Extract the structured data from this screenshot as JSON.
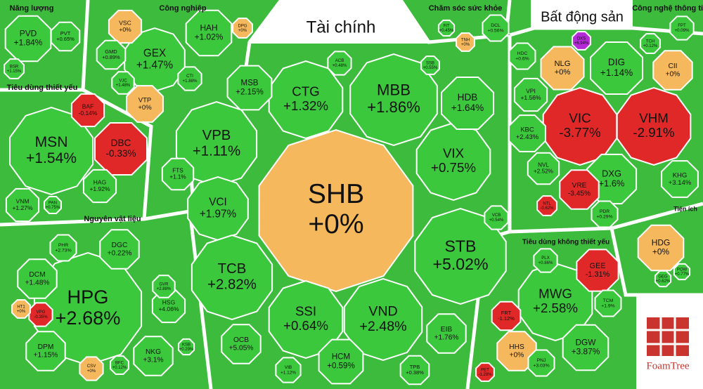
{
  "groups": [
    {
      "name": "Tài chính",
      "stocks": [
        {
          "ticker": "SHB",
          "change": "+0%"
        },
        {
          "ticker": "MBB",
          "change": "+1.86%"
        },
        {
          "ticker": "CTG",
          "change": "+1.32%"
        },
        {
          "ticker": "VPB",
          "change": "+1.11%"
        },
        {
          "ticker": "VCI",
          "change": "+1.97%"
        },
        {
          "ticker": "TCB",
          "change": "+2.82%"
        },
        {
          "ticker": "SSI",
          "change": "+0.64%"
        },
        {
          "ticker": "VND",
          "change": "+2.48%"
        },
        {
          "ticker": "STB",
          "change": "+5.02%"
        },
        {
          "ticker": "VIX",
          "change": "+0.75%"
        },
        {
          "ticker": "HDB",
          "change": "+1.64%"
        },
        {
          "ticker": "MSB",
          "change": "+2.15%"
        },
        {
          "ticker": "OCB",
          "change": "+5.05%"
        },
        {
          "ticker": "HCM",
          "change": "+0.59%"
        },
        {
          "ticker": "EIB",
          "change": "+1.76%"
        },
        {
          "ticker": "TPB",
          "change": "+0.38%"
        },
        {
          "ticker": "FTS",
          "change": "+1.1%"
        },
        {
          "ticker": "VIB",
          "change": "+1.12%"
        },
        {
          "ticker": "ACB",
          "change": "+0.48%"
        },
        {
          "ticker": "SSB",
          "change": "+0.55%"
        },
        {
          "ticker": "VCB",
          "change": "+0.54%"
        }
      ]
    },
    {
      "name": "Bất động sản",
      "stocks": [
        {
          "ticker": "VIC",
          "change": "-3.77%"
        },
        {
          "ticker": "VHM",
          "change": "-2.91%"
        },
        {
          "ticker": "DIG",
          "change": "+1.14%"
        },
        {
          "ticker": "NLG",
          "change": "+0%"
        },
        {
          "ticker": "CII",
          "change": "+0%"
        },
        {
          "ticker": "DXG",
          "change": "+1.6%"
        },
        {
          "ticker": "VRE",
          "change": "-3.45%"
        },
        {
          "ticker": "KHG",
          "change": "+3.14%"
        },
        {
          "ticker": "HDC",
          "change": "+0.6%"
        },
        {
          "ticker": "VPI",
          "change": "+1.56%"
        },
        {
          "ticker": "KBC",
          "change": "+2.43%"
        },
        {
          "ticker": "NVL",
          "change": "+2.52%"
        },
        {
          "ticker": "PDR",
          "change": "+0.29%"
        },
        {
          "ticker": "DXS",
          "change": "+6.94%"
        },
        {
          "ticker": "TCH",
          "change": "+0.12%"
        },
        {
          "ticker": "NTL",
          "change": "-0.62%"
        }
      ]
    },
    {
      "name": "Năng lượng",
      "stocks": [
        {
          "ticker": "PVD",
          "change": "+1.84%"
        },
        {
          "ticker": "PVT",
          "change": "+0.65%"
        },
        {
          "ticker": "BSR",
          "change": "+1.15%"
        }
      ]
    },
    {
      "name": "Công nghiệp",
      "stocks": [
        {
          "ticker": "GEX",
          "change": "+1.47%"
        },
        {
          "ticker": "HAH",
          "change": "+1.02%"
        },
        {
          "ticker": "VSC",
          "change": "+0%"
        },
        {
          "ticker": "GMD",
          "change": "+0.89%"
        },
        {
          "ticker": "VTP",
          "change": "+0%"
        },
        {
          "ticker": "VJC",
          "change": "+1.48%"
        },
        {
          "ticker": "CTI",
          "change": "+1.88%"
        },
        {
          "ticker": "DPG",
          "change": "+0%"
        }
      ]
    },
    {
      "name": "Chăm sóc sức khỏe",
      "stocks": [
        {
          "ticker": "DCL",
          "change": "+0.56%"
        },
        {
          "ticker": "FIT",
          "change": "+0.45%"
        },
        {
          "ticker": "TNH",
          "change": "+0%"
        }
      ]
    },
    {
      "name": "Công nghệ thông tin",
      "stocks": [
        {
          "ticker": "FPT",
          "change": "+0.09%"
        }
      ]
    },
    {
      "name": "Tiêu dùng thiết yếu",
      "stocks": [
        {
          "ticker": "MSN",
          "change": "+1.54%"
        },
        {
          "ticker": "DBC",
          "change": "-0.33%"
        },
        {
          "ticker": "BAF",
          "change": "-0.14%"
        },
        {
          "ticker": "HAG",
          "change": "+1.92%"
        },
        {
          "ticker": "VNM",
          "change": "+1.27%"
        },
        {
          "ticker": "PAN",
          "change": "+0.75%"
        }
      ]
    },
    {
      "name": "Nguyên vật liệu",
      "stocks": [
        {
          "ticker": "HPG",
          "change": "+2.68%"
        },
        {
          "ticker": "DGC",
          "change": "+0.22%"
        },
        {
          "ticker": "DCM",
          "change": "+1.48%"
        },
        {
          "ticker": "DPM",
          "change": "+1.15%"
        },
        {
          "ticker": "NKG",
          "change": "+3.1%"
        },
        {
          "ticker": "HSG",
          "change": "+4.06%"
        },
        {
          "ticker": "GVR",
          "change": "+2.88%"
        },
        {
          "ticker": "PHR",
          "change": "+2.73%"
        },
        {
          "ticker": "VPG",
          "change": "-0.35%"
        },
        {
          "ticker": "HT1",
          "change": "+0%"
        },
        {
          "ticker": "CSV",
          "change": "+0%"
        },
        {
          "ticker": "BFC",
          "change": "+0.12%"
        },
        {
          "ticker": "KSB",
          "change": "+0.29%"
        }
      ]
    },
    {
      "name": "Tiện ích",
      "stocks": [
        {
          "ticker": "HDG",
          "change": "+0%"
        },
        {
          "ticker": "GEG",
          "change": "+0.62%"
        },
        {
          "ticker": "POW",
          "change": "+0.77%"
        }
      ]
    },
    {
      "name": "Tiêu dùng không thiết yếu",
      "stocks": [
        {
          "ticker": "MWG",
          "change": "+2.58%"
        },
        {
          "ticker": "GEE",
          "change": "-1.31%"
        },
        {
          "ticker": "DGW",
          "change": "+3.87%"
        },
        {
          "ticker": "HHS",
          "change": "+0%"
        },
        {
          "ticker": "TCM",
          "change": "+1.9%"
        },
        {
          "ticker": "FRT",
          "change": "-1.12%"
        },
        {
          "ticker": "PNJ",
          "change": "+3.03%"
        },
        {
          "ticker": "PLX",
          "change": "+0.86%"
        },
        {
          "ticker": "PET",
          "change": "-1.28%"
        }
      ]
    }
  ],
  "logo": "FoamTree"
}
